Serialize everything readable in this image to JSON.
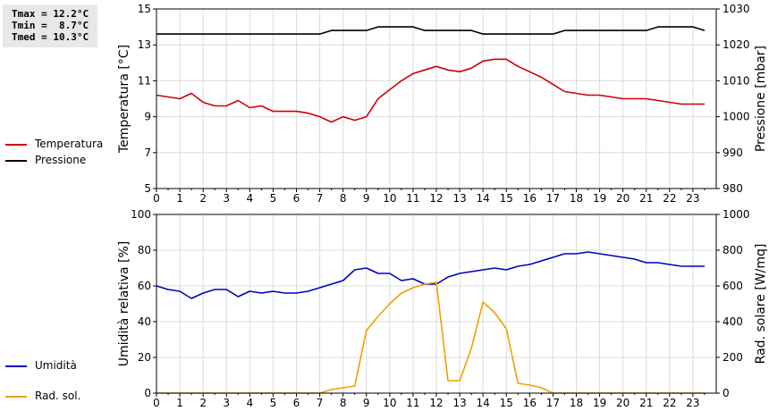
{
  "stats": {
    "tmax": "Tmax = 12.2°C",
    "tmin": "Tmin =  8.7°C",
    "tmed": "Tmed = 10.3°C"
  },
  "legend_top": [
    {
      "label": "Temperatura",
      "color": "#d00000"
    },
    {
      "label": "Pressione",
      "color": "#000000"
    }
  ],
  "legend_bottom": [
    {
      "label": "Umidità",
      "color": "#0000c0"
    },
    {
      "label": "Rad. sol.",
      "color": "#f0a000"
    }
  ],
  "chart_data": [
    {
      "type": "line",
      "x_ticks": [
        0,
        1,
        2,
        3,
        4,
        5,
        6,
        7,
        8,
        9,
        10,
        11,
        12,
        13,
        14,
        15,
        16,
        17,
        18,
        19,
        20,
        21,
        22,
        23
      ],
      "xlim": [
        0,
        24
      ],
      "grid": true,
      "y_left": {
        "label": "Temperatura [°C]",
        "ylim": [
          5,
          15
        ],
        "ticks": [
          5,
          7,
          9,
          11,
          13,
          15
        ]
      },
      "y_right": {
        "label": "Pressione [mbar]",
        "ylim": [
          980,
          1030
        ],
        "ticks": [
          980,
          990,
          1000,
          1010,
          1020,
          1030
        ]
      },
      "series": [
        {
          "name": "Temperatura",
          "color": "#d00000",
          "axis": "left",
          "x": [
            0,
            0.5,
            1,
            1.5,
            2,
            2.5,
            3,
            3.5,
            4,
            4.5,
            5,
            5.5,
            6,
            6.5,
            7,
            7.5,
            8,
            8.5,
            9,
            9.5,
            10,
            10.5,
            11,
            11.5,
            12,
            12.5,
            13,
            13.5,
            14,
            14.5,
            15,
            15.5,
            16,
            16.5,
            17,
            17.5,
            18,
            18.5,
            19,
            19.5,
            20,
            20.5,
            21,
            21.5,
            22,
            22.5,
            23,
            23.5
          ],
          "y": [
            10.2,
            10.1,
            10.0,
            10.3,
            9.8,
            9.6,
            9.6,
            9.9,
            9.5,
            9.6,
            9.3,
            9.3,
            9.3,
            9.2,
            9.0,
            8.7,
            9.0,
            8.8,
            9.0,
            10.0,
            10.5,
            11.0,
            11.4,
            11.6,
            11.8,
            11.6,
            11.5,
            11.7,
            12.1,
            12.2,
            12.2,
            11.8,
            11.5,
            11.2,
            10.8,
            10.4,
            10.3,
            10.2,
            10.2,
            10.1,
            10.0,
            10.0,
            10.0,
            9.9,
            9.8,
            9.7,
            9.7,
            9.7
          ]
        },
        {
          "name": "Pressione",
          "color": "#000000",
          "axis": "right",
          "x": [
            0,
            0.5,
            1,
            1.5,
            2,
            2.5,
            3,
            3.5,
            4,
            4.5,
            5,
            5.5,
            6,
            6.5,
            7,
            7.5,
            8,
            8.5,
            9,
            9.5,
            10,
            10.5,
            11,
            11.5,
            12,
            12.5,
            13,
            13.5,
            14,
            14.5,
            15,
            15.5,
            16,
            16.5,
            17,
            17.5,
            18,
            18.5,
            19,
            19.5,
            20,
            20.5,
            21,
            21.5,
            22,
            22.5,
            23,
            23.5
          ],
          "y": [
            1023,
            1023,
            1023,
            1023,
            1023,
            1023,
            1023,
            1023,
            1023,
            1023,
            1023,
            1023,
            1023,
            1023,
            1023,
            1024,
            1024,
            1024,
            1024,
            1025,
            1025,
            1025,
            1025,
            1024,
            1024,
            1024,
            1024,
            1024,
            1023,
            1023,
            1023,
            1023,
            1023,
            1023,
            1023,
            1024,
            1024,
            1024,
            1024,
            1024,
            1024,
            1024,
            1024,
            1025,
            1025,
            1025,
            1025,
            1024
          ]
        }
      ]
    },
    {
      "type": "line",
      "x_ticks": [
        0,
        1,
        2,
        3,
        4,
        5,
        6,
        7,
        8,
        9,
        10,
        11,
        12,
        13,
        14,
        15,
        16,
        17,
        18,
        19,
        20,
        21,
        22,
        23
      ],
      "xlim": [
        0,
        24
      ],
      "grid": true,
      "y_left": {
        "label": "Umidità relativa [%]",
        "ylim": [
          0,
          100
        ],
        "ticks": [
          0,
          20,
          40,
          60,
          80,
          100
        ]
      },
      "y_right": {
        "label": "Rad. solare [W/mq]",
        "ylim": [
          0,
          1000
        ],
        "ticks": [
          0,
          200,
          400,
          600,
          800,
          1000
        ]
      },
      "series": [
        {
          "name": "Umidità",
          "color": "#0000c0",
          "axis": "left",
          "x": [
            0,
            0.5,
            1,
            1.5,
            2,
            2.5,
            3,
            3.5,
            4,
            4.5,
            5,
            5.5,
            6,
            6.5,
            7,
            7.5,
            8,
            8.5,
            9,
            9.5,
            10,
            10.5,
            11,
            11.5,
            12,
            12.5,
            13,
            13.5,
            14,
            14.5,
            15,
            15.5,
            16,
            16.5,
            17,
            17.5,
            18,
            18.5,
            19,
            19.5,
            20,
            20.5,
            21,
            21.5,
            22,
            22.5,
            23,
            23.5
          ],
          "y": [
            60,
            58,
            57,
            53,
            56,
            58,
            58,
            54,
            57,
            56,
            57,
            56,
            56,
            57,
            59,
            61,
            63,
            69,
            70,
            67,
            67,
            63,
            64,
            61,
            61,
            65,
            67,
            68,
            69,
            70,
            69,
            71,
            72,
            74,
            76,
            78,
            78,
            79,
            78,
            77,
            76,
            75,
            73,
            73,
            72,
            71,
            71,
            71
          ]
        },
        {
          "name": "Rad. sol.",
          "color": "#f0a000",
          "axis": "right",
          "x": [
            0,
            0.5,
            1,
            1.5,
            2,
            2.5,
            3,
            3.5,
            4,
            4.5,
            5,
            5.5,
            6,
            6.5,
            7,
            7.5,
            8,
            8.5,
            9,
            9.5,
            10,
            10.5,
            11,
            11.5,
            12,
            12.5,
            13,
            13.5,
            14,
            14.5,
            15,
            15.5,
            16,
            16.5,
            17,
            17.5,
            18,
            18.5,
            19,
            19.5,
            20,
            20.5,
            21,
            21.5,
            22,
            22.5,
            23,
            23.5
          ],
          "y": [
            0,
            0,
            0,
            0,
            0,
            0,
            0,
            0,
            0,
            0,
            0,
            0,
            0,
            0,
            0,
            20,
            30,
            40,
            350,
            430,
            500,
            560,
            590,
            610,
            620,
            70,
            70,
            250,
            510,
            450,
            360,
            55,
            45,
            30,
            0,
            0,
            0,
            0,
            0,
            0,
            0,
            0,
            0,
            0,
            0,
            0,
            0,
            0
          ]
        }
      ]
    }
  ]
}
